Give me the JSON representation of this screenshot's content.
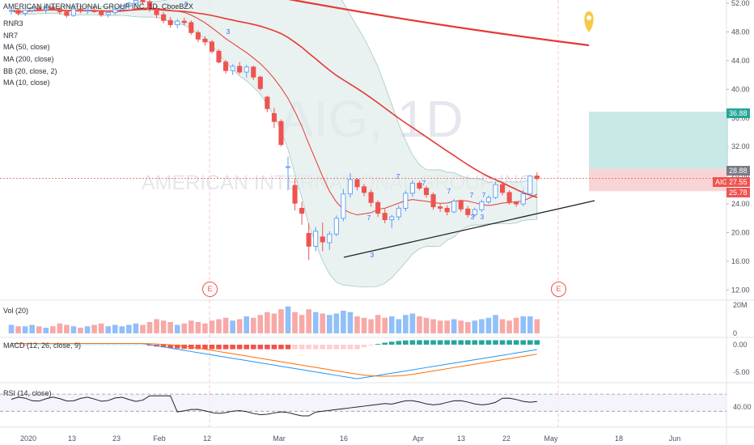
{
  "header": {
    "title": "AMERICAN INTERNATIONAL GROUP INC, 1D, CboeBZX",
    "watermark_symbol": "AIG, 1D",
    "watermark_name": "AMERICAN INTERNATIONAL GROUP INC",
    "indicators": [
      "RNR3",
      "NR7",
      "MA (50, close)",
      "MA (200, close)",
      "BB (20, close, 2)",
      "MA (10, close)"
    ]
  },
  "panes": {
    "volume_label": "Vol (20)",
    "macd_label": "MACD (12, 26, close, 9)",
    "rsi_label": "RSI (14, close)"
  },
  "price_flags": {
    "symbol": "AIG",
    "last": "27.55",
    "target": "36.88",
    "entry": "28.88",
    "stop": "25.78"
  },
  "earnings_marker": "E",
  "colors": {
    "up": "#5b9cf6",
    "down": "#ef5350",
    "ma": "#e53935",
    "bb_fill": "#e0ede9",
    "target_zone": "#b2dfdb",
    "stop_zone": "#f8c9cc",
    "flag_blue": "#2962ff",
    "flag_red": "#ef5350",
    "flag_teal": "#26a69a",
    "marker_yellow": "#f7c948"
  },
  "chart_data": {
    "type": "candlestick",
    "symbol": "AIG",
    "timeframe": "1D",
    "y_axis": {
      "labels": [
        "52.00",
        "48.00",
        "44.00",
        "40.00",
        "36.00",
        "32.00",
        "28.00",
        "24.00",
        "20.00",
        "16.00",
        "12.00"
      ]
    },
    "x_axis": {
      "labels": [
        "2020",
        "13",
        "23",
        "Feb",
        "12",
        "Mar",
        "16",
        "Apr",
        "13",
        "22",
        "May",
        "18",
        "Jun"
      ]
    },
    "last_price": 27.55,
    "position": {
      "target": 36.88,
      "entry": 28.88,
      "stop": 25.78
    },
    "candles_ohlc": [
      [
        50.9,
        51.3,
        50.4,
        51.0
      ],
      [
        51.0,
        51.2,
        50.3,
        50.6
      ],
      [
        50.6,
        51.1,
        50.2,
        51.0
      ],
      [
        51.0,
        51.5,
        50.7,
        51.3
      ],
      [
        51.3,
        51.8,
        50.9,
        51.1
      ],
      [
        51.1,
        51.6,
        50.6,
        51.4
      ],
      [
        51.4,
        51.8,
        51.0,
        51.2
      ],
      [
        51.2,
        51.4,
        50.4,
        50.8
      ],
      [
        50.8,
        51.0,
        50.0,
        50.3
      ],
      [
        50.3,
        51.4,
        50.1,
        51.2
      ],
      [
        51.2,
        51.5,
        50.6,
        50.9
      ],
      [
        50.9,
        51.2,
        50.5,
        51.0
      ],
      [
        51.0,
        51.5,
        50.7,
        50.8
      ],
      [
        50.8,
        51.1,
        50.1,
        50.4
      ],
      [
        50.4,
        50.9,
        50.0,
        50.7
      ],
      [
        50.7,
        51.3,
        50.4,
        51.1
      ],
      [
        51.1,
        51.8,
        50.8,
        51.6
      ],
      [
        51.6,
        52.2,
        51.2,
        52.0
      ],
      [
        52.0,
        52.6,
        51.6,
        52.4
      ],
      [
        52.4,
        52.9,
        51.9,
        52.2
      ],
      [
        52.2,
        52.6,
        50.8,
        51.2
      ],
      [
        51.2,
        51.6,
        49.9,
        50.4
      ],
      [
        50.4,
        50.8,
        49.2,
        49.6
      ],
      [
        49.6,
        50.1,
        48.6,
        49.0
      ],
      [
        49.0,
        49.8,
        48.5,
        49.5
      ],
      [
        49.5,
        50.0,
        48.9,
        49.3
      ],
      [
        49.3,
        49.6,
        47.6,
        47.9
      ],
      [
        47.9,
        48.2,
        46.6,
        47.0
      ],
      [
        47.0,
        47.4,
        46.1,
        46.6
      ],
      [
        46.6,
        46.9,
        45.0,
        45.3
      ],
      [
        45.3,
        45.6,
        43.6,
        43.8
      ],
      [
        43.8,
        44.1,
        42.2,
        42.6
      ],
      [
        42.6,
        43.5,
        42.0,
        43.2
      ],
      [
        43.2,
        43.8,
        42.1,
        42.4
      ],
      [
        42.4,
        43.4,
        41.6,
        43.1
      ],
      [
        43.1,
        43.3,
        41.3,
        41.7
      ],
      [
        41.7,
        41.9,
        39.8,
        40.1
      ],
      [
        38.9,
        39.1,
        36.8,
        37.3
      ],
      [
        36.6,
        37.4,
        34.6,
        35.5
      ],
      [
        35.5,
        35.8,
        32.0,
        32.3
      ],
      [
        29.1,
        30.6,
        25.9,
        29.2
      ],
      [
        26.6,
        27.6,
        23.1,
        24.1
      ],
      [
        23.4,
        24.3,
        21.1,
        22.7
      ],
      [
        19.9,
        21.3,
        16.2,
        18.1
      ],
      [
        18.1,
        20.8,
        17.4,
        20.2
      ],
      [
        19.4,
        21.4,
        17.4,
        18.7
      ],
      [
        18.6,
        20.2,
        17.6,
        19.8
      ],
      [
        19.8,
        22.4,
        19.5,
        22.0
      ],
      [
        22.0,
        26.1,
        21.6,
        25.4
      ],
      [
        25.4,
        28.3,
        24.9,
        27.4
      ],
      [
        27.4,
        27.6,
        25.9,
        26.4
      ],
      [
        26.4,
        26.8,
        25.1,
        25.6
      ],
      [
        25.6,
        26.0,
        23.6,
        24.2
      ],
      [
        24.2,
        24.5,
        22.2,
        22.7
      ],
      [
        22.7,
        23.3,
        21.3,
        21.8
      ],
      [
        21.8,
        22.5,
        20.6,
        22.2
      ],
      [
        22.2,
        23.8,
        21.7,
        23.4
      ],
      [
        23.4,
        25.9,
        23.0,
        25.5
      ],
      [
        25.5,
        27.3,
        25.0,
        26.9
      ],
      [
        26.9,
        27.2,
        25.9,
        26.2
      ],
      [
        26.2,
        26.5,
        24.9,
        25.3
      ],
      [
        25.3,
        25.6,
        23.2,
        23.6
      ],
      [
        23.6,
        24.0,
        22.9,
        23.4
      ],
      [
        23.4,
        23.8,
        22.4,
        22.9
      ],
      [
        22.9,
        24.7,
        22.7,
        24.4
      ],
      [
        24.4,
        24.6,
        22.9,
        23.3
      ],
      [
        23.3,
        23.7,
        22.1,
        22.5
      ],
      [
        22.5,
        23.5,
        22.2,
        23.2
      ],
      [
        23.2,
        24.6,
        22.9,
        24.3
      ],
      [
        24.3,
        25.2,
        24.0,
        24.9
      ],
      [
        24.9,
        27.1,
        24.7,
        26.7
      ],
      [
        26.7,
        26.9,
        25.2,
        25.6
      ],
      [
        25.6,
        25.9,
        23.9,
        24.2
      ],
      [
        24.2,
        24.4,
        23.6,
        24.0
      ],
      [
        24.0,
        26.0,
        23.7,
        25.4
      ],
      [
        25.4,
        28.0,
        25.1,
        27.9
      ],
      [
        27.9,
        28.4,
        27.3,
        27.55
      ]
    ],
    "volume_millions": [
      6,
      5,
      5,
      6,
      5,
      4,
      5,
      7,
      6,
      5,
      4,
      5,
      6,
      7,
      5,
      6,
      5,
      6,
      7,
      6,
      8,
      10,
      9,
      8,
      6,
      7,
      9,
      8,
      7,
      9,
      10,
      11,
      9,
      10,
      12,
      11,
      13,
      15,
      14,
      17,
      19,
      15,
      13,
      17,
      15,
      14,
      13,
      14,
      16,
      15,
      12,
      11,
      10,
      13,
      11,
      12,
      10,
      13,
      14,
      12,
      11,
      10,
      9,
      9,
      10,
      9,
      8,
      9,
      10,
      11,
      13,
      10,
      9,
      11,
      12,
      12,
      10
    ],
    "macd": {
      "y_axis": [
        "0.00",
        "-5.00"
      ],
      "histogram_note": "negative red bars mid-March, positive teal bars from April"
    },
    "rsi": {
      "y_axis": [
        "40.00"
      ],
      "bands": [
        70,
        30
      ]
    },
    "indicators": [
      "MA (50)",
      "MA (200)",
      "BB (20, 2)",
      "MA (10)"
    ]
  }
}
